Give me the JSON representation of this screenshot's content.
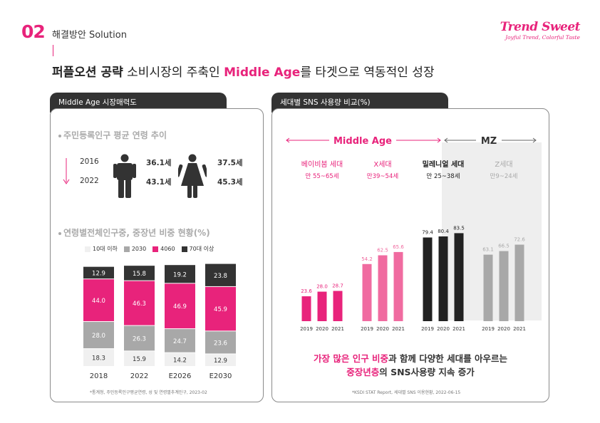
{
  "header": {
    "section_number": "02",
    "section_title": "해결방안 Solution",
    "headline_bold": "퍼플오션 공략",
    "headline_mid": " 소비시장의 주축인 ",
    "headline_pink": "Middle Age",
    "headline_end": "를 타겟으로 역동적인 성장"
  },
  "logo": {
    "name": "Trend Sweet",
    "tagline": "Joyful Trend, Colorful Taste"
  },
  "colors": {
    "pink": "#e8237b",
    "dark": "#333333",
    "gray": "#a8a8a8",
    "light": "#f0f0f0",
    "mid_pink": "#f06ba0"
  },
  "left_panel": {
    "tab_title": "Middle Age 시장매력도",
    "sub1": "주민등록인구 평균 연령 추이",
    "years": [
      "2016",
      "2022"
    ],
    "male_ages": [
      "36.1세",
      "43.1세"
    ],
    "female_ages": [
      "37.5세",
      "45.3세"
    ],
    "sub2": "연령별전체인구중, 중장년 비중 현황(%)",
    "legend": [
      "10대 이하",
      "2030",
      "4060",
      "70대 이상"
    ],
    "source": "*통계청, 주민등록인구평균연령, 성 및 연령별추계인구, 2023-02"
  },
  "right_panel": {
    "tab_title": "세대별 SNS 사용량 비교(%)",
    "middle_age_label": "Middle Age",
    "mz_label": "MZ",
    "generations": [
      {
        "name": "베이비붐 세대",
        "range": "만 55~65세"
      },
      {
        "name": "X세대",
        "range": "만39~54세"
      },
      {
        "name": "밀레니얼 세대",
        "range": "만 25~38세"
      },
      {
        "name": "Z세대",
        "range": "만9~24세"
      }
    ],
    "conclusion_line1_pink": "가장 많은 인구 비중",
    "conclusion_line1_rest": "과 함께 다양한 세대를 아우르는",
    "conclusion_line2_pink": "중장년층",
    "conclusion_line2_rest": "의 SNS사용량 지속 증가",
    "source": "*KSDI STAT Report, 세대별 SNS 이용현황, 2022-06-15"
  },
  "chart_data": [
    {
      "type": "bar",
      "stacked": true,
      "categories": [
        "2018",
        "2022",
        "E2026",
        "E2030"
      ],
      "series": [
        {
          "name": "10대 이하",
          "values": [
            18.3,
            15.9,
            14.2,
            12.9
          ],
          "color": "#f0f0f0"
        },
        {
          "name": "2030",
          "values": [
            28.0,
            26.3,
            24.7,
            23.6
          ],
          "color": "#a8a8a8"
        },
        {
          "name": "4060",
          "values": [
            44.0,
            46.3,
            46.9,
            45.9
          ],
          "color": "#e8237b"
        },
        {
          "name": "70대 이상",
          "values": [
            12.9,
            15.8,
            19.2,
            23.8
          ],
          "color": "#333333"
        }
      ]
    },
    {
      "type": "bar",
      "groups": [
        {
          "name": "베이비붐 세대",
          "color": "#e8237b",
          "x": [
            "2019",
            "2020",
            "2021"
          ],
          "values": [
            23.6,
            28.0,
            28.7
          ]
        },
        {
          "name": "X세대",
          "color": "#f06ba0",
          "x": [
            "2019",
            "2020",
            "2021"
          ],
          "values": [
            54.2,
            62.5,
            65.6
          ]
        },
        {
          "name": "밀레니얼 세대",
          "color": "#222222",
          "x": [
            "2019",
            "2020",
            "2021"
          ],
          "values": [
            79.4,
            80.4,
            83.5
          ]
        },
        {
          "name": "Z세대",
          "color": "#a8a8a8",
          "x": [
            "2019",
            "2020",
            "2021"
          ],
          "values": [
            63.1,
            66.5,
            72.6
          ]
        }
      ]
    }
  ]
}
